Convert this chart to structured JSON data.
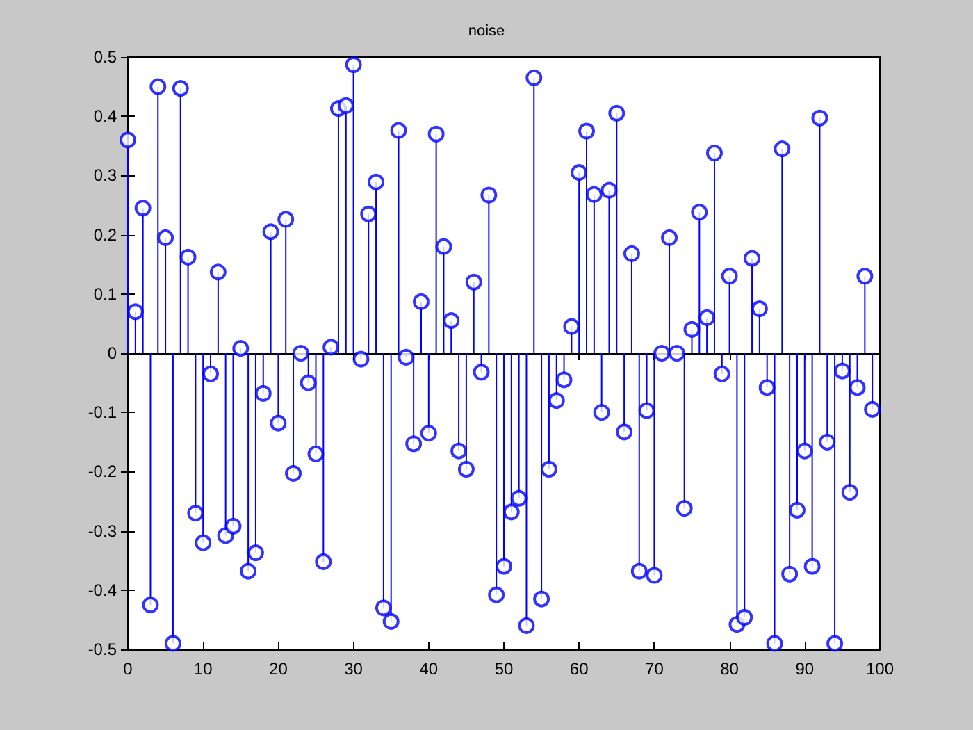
{
  "chart_data": {
    "type": "lollipop",
    "title": "noise",
    "x": [
      0,
      1,
      2,
      3,
      4,
      5,
      6,
      7,
      8,
      9,
      10,
      11,
      12,
      13,
      14,
      15,
      16,
      17,
      18,
      19,
      20,
      21,
      22,
      23,
      24,
      25,
      26,
      27,
      28,
      29,
      30,
      31,
      32,
      33,
      34,
      35,
      36,
      37,
      38,
      39,
      40,
      41,
      42,
      43,
      44,
      45,
      46,
      47,
      48,
      49,
      50,
      51,
      52,
      53,
      54,
      55,
      56,
      57,
      58,
      59,
      60,
      61,
      62,
      63,
      64,
      65,
      66,
      67,
      68,
      69,
      70,
      71,
      72,
      73,
      74,
      75,
      76,
      77,
      78,
      79,
      80,
      81,
      82,
      83,
      84,
      85,
      86,
      87,
      88,
      89,
      90,
      91,
      92,
      93,
      94,
      95,
      96,
      97,
      98,
      99
    ],
    "values": [
      0.36,
      0.07,
      0.245,
      -0.425,
      0.45,
      0.195,
      -0.49,
      0.447,
      0.162,
      -0.27,
      -0.32,
      -0.035,
      0.137,
      -0.308,
      -0.292,
      0.008,
      -0.368,
      -0.337,
      -0.068,
      0.205,
      -0.118,
      0.226,
      -0.203,
      0.0,
      -0.05,
      -0.17,
      -0.352,
      0.01,
      0.413,
      0.418,
      0.487,
      -0.01,
      0.235,
      0.289,
      -0.43,
      -0.453,
      0.376,
      -0.007,
      -0.153,
      0.087,
      -0.135,
      0.37,
      0.18,
      0.055,
      -0.165,
      -0.196,
      0.12,
      -0.032,
      0.267,
      -0.408,
      -0.36,
      -0.268,
      -0.245,
      -0.46,
      0.465,
      -0.415,
      -0.196,
      -0.08,
      -0.045,
      0.045,
      0.305,
      0.375,
      0.268,
      -0.1,
      0.275,
      0.405,
      -0.133,
      0.168,
      -0.368,
      -0.097,
      -0.375,
      0.0,
      0.195,
      0.0,
      -0.262,
      0.04,
      0.238,
      0.06,
      0.338,
      -0.035,
      0.13,
      -0.458,
      -0.446,
      0.16,
      0.075,
      -0.058,
      -0.49,
      0.345,
      -0.373,
      -0.265,
      -0.165,
      -0.36,
      0.397,
      -0.15,
      -0.49,
      -0.03,
      -0.235,
      -0.058,
      0.13,
      -0.095
    ],
    "color": "#0000ff",
    "marker": "circle",
    "xlim": [
      0,
      100
    ],
    "xticks": [
      0,
      10,
      20,
      30,
      40,
      50,
      60,
      70,
      80,
      90,
      100
    ],
    "ylim": [
      -0.5,
      0.5
    ],
    "yticks": [
      -0.5,
      -0.4,
      -0.3,
      -0.2,
      -0.1,
      0,
      0.1,
      0.2,
      0.3,
      0.4,
      0.5
    ]
  }
}
